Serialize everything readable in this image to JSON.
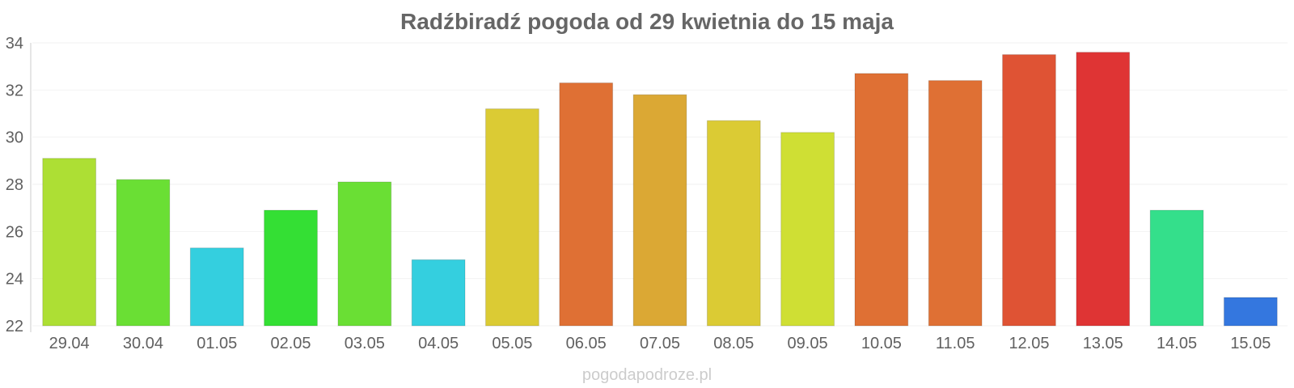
{
  "chart_data": {
    "type": "bar",
    "title": "Radźbiradź pogoda od 29 kwietnia do 15 maja",
    "xlabel": "",
    "ylabel": "",
    "ylim": [
      22,
      34
    ],
    "yticks": [
      22,
      24,
      26,
      28,
      30,
      32,
      34
    ],
    "grid": true,
    "legend": "none",
    "categories": [
      "29.04",
      "30.04",
      "01.05",
      "02.05",
      "03.05",
      "04.05",
      "05.05",
      "06.05",
      "07.05",
      "08.05",
      "09.05",
      "10.05",
      "11.05",
      "12.05",
      "13.05",
      "14.05",
      "15.05"
    ],
    "series": [
      {
        "values": [
          29.1,
          28.2,
          25.3,
          26.9,
          28.1,
          24.8,
          31.2,
          32.3,
          31.8,
          30.7,
          30.2,
          32.7,
          32.4,
          33.5,
          33.6,
          26.9,
          23.2
        ],
        "colors": [
          "#addf34",
          "#6adf34",
          "#34cfdf",
          "#34df34",
          "#6adf34",
          "#34cfdf",
          "#dbcb34",
          "#df7034",
          "#dba834",
          "#dbcb34",
          "#cfdf34",
          "#df7034",
          "#df7034",
          "#df5334",
          "#df3434",
          "#34df8b",
          "#3477df"
        ]
      }
    ]
  },
  "watermark": "pogodapodroze.pl"
}
